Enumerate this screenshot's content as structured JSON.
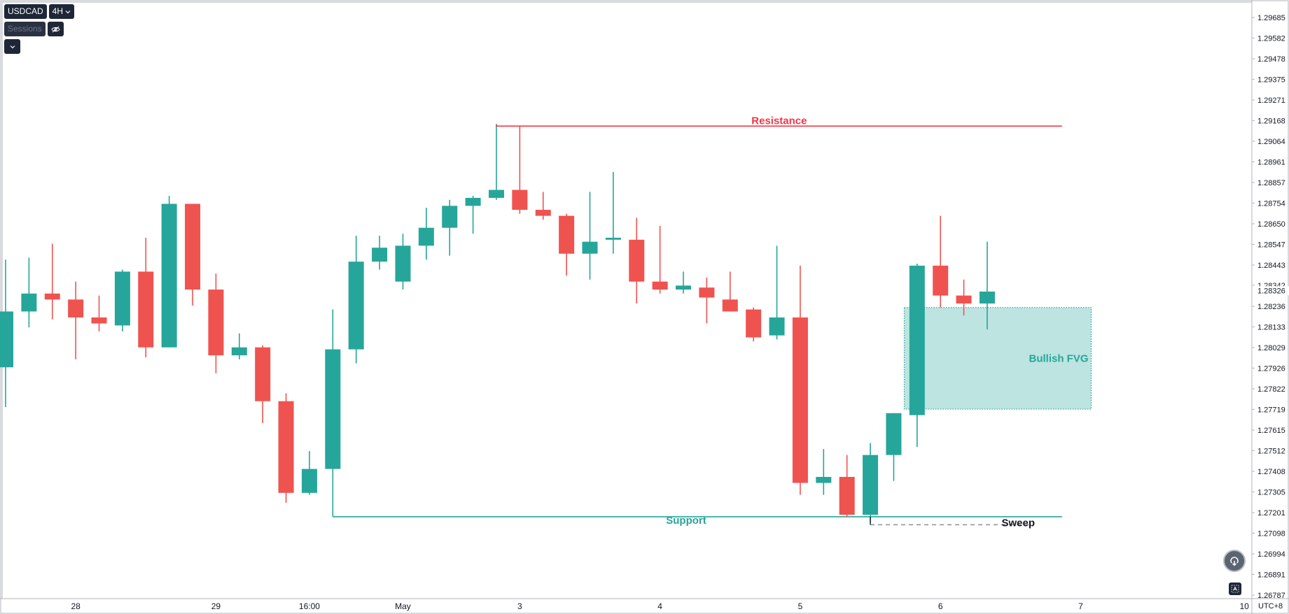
{
  "toolbar": {
    "symbol": "USDCAD",
    "interval": "4H",
    "sessions_label": "Sessions",
    "hide_icon": "eye-off-icon",
    "collapse_icon": "chevron-down-icon"
  },
  "timezone": "UTC+8",
  "chart_data": {
    "type": "candlestick",
    "title": "",
    "y_range": [
      1.2675,
      1.2975
    ],
    "y_ticks": [
      "1.29685",
      "1.29582",
      "1.29478",
      "1.29375",
      "1.29271",
      "1.29168",
      "1.29064",
      "1.28961",
      "1.28857",
      "1.28754",
      "1.28650",
      "1.28547",
      "1.28443",
      "1.28342",
      "1.28236",
      "1.28133",
      "1.28029",
      "1.27926",
      "1.27822",
      "1.27719",
      "1.27615",
      "1.27512",
      "1.27408",
      "1.27305",
      "1.27201",
      "1.27098",
      "1.26994",
      "1.26891",
      "1.26787"
    ],
    "current_price": "1.28326",
    "x_labels": [
      {
        "label": "28",
        "index": 3
      },
      {
        "label": "29",
        "index": 9
      },
      {
        "label": "16:00",
        "index": 13
      },
      {
        "label": "May",
        "index": 17
      },
      {
        "label": "3",
        "index": 22
      },
      {
        "label": "4",
        "index": 28
      },
      {
        "label": "5",
        "index": 34
      },
      {
        "label": "6",
        "index": 40
      },
      {
        "label": "7",
        "index": 46
      },
      {
        "label": "10",
        "index": 53
      }
    ],
    "candles": [
      {
        "o": 1.2793,
        "h": 1.2847,
        "l": 1.2773,
        "c": 1.2821
      },
      {
        "o": 1.2821,
        "h": 1.2848,
        "l": 1.2813,
        "c": 1.283
      },
      {
        "o": 1.283,
        "h": 1.2855,
        "l": 1.2817,
        "c": 1.2827
      },
      {
        "o": 1.2827,
        "h": 1.2836,
        "l": 1.2797,
        "c": 1.2818
      },
      {
        "o": 1.2818,
        "h": 1.2829,
        "l": 1.2811,
        "c": 1.2815
      },
      {
        "o": 1.2814,
        "h": 1.2842,
        "l": 1.2811,
        "c": 1.2841
      },
      {
        "o": 1.2841,
        "h": 1.2858,
        "l": 1.2798,
        "c": 1.2803
      },
      {
        "o": 1.2803,
        "h": 1.2879,
        "l": 1.2803,
        "c": 1.2875
      },
      {
        "o": 1.2875,
        "h": 1.2875,
        "l": 1.2824,
        "c": 1.2832
      },
      {
        "o": 1.2832,
        "h": 1.284,
        "l": 1.279,
        "c": 1.2799
      },
      {
        "o": 1.2799,
        "h": 1.281,
        "l": 1.2797,
        "c": 1.2803
      },
      {
        "o": 1.2803,
        "h": 1.2804,
        "l": 1.2765,
        "c": 1.2776
      },
      {
        "o": 1.2776,
        "h": 1.278,
        "l": 1.2725,
        "c": 1.273
      },
      {
        "o": 1.273,
        "h": 1.2751,
        "l": 1.2729,
        "c": 1.2742
      },
      {
        "o": 1.2742,
        "h": 1.2822,
        "l": 1.2725,
        "c": 1.2802
      },
      {
        "o": 1.2802,
        "h": 1.2859,
        "l": 1.2795,
        "c": 1.2846
      },
      {
        "o": 1.2846,
        "h": 1.2859,
        "l": 1.2842,
        "c": 1.2853
      },
      {
        "o": 1.2836,
        "h": 1.286,
        "l": 1.2832,
        "c": 1.2854
      },
      {
        "o": 1.2854,
        "h": 1.2873,
        "l": 1.2847,
        "c": 1.2863
      },
      {
        "o": 1.2863,
        "h": 1.2877,
        "l": 1.2849,
        "c": 1.2874
      },
      {
        "o": 1.2874,
        "h": 1.2879,
        "l": 1.286,
        "c": 1.2878
      },
      {
        "o": 1.2878,
        "h": 1.2915,
        "l": 1.2877,
        "c": 1.2882
      },
      {
        "o": 1.2882,
        "h": 1.2914,
        "l": 1.287,
        "c": 1.2872
      },
      {
        "o": 1.2872,
        "h": 1.2881,
        "l": 1.2867,
        "c": 1.2869
      },
      {
        "o": 1.2869,
        "h": 1.287,
        "l": 1.2839,
        "c": 1.285
      },
      {
        "o": 1.285,
        "h": 1.2881,
        "l": 1.2837,
        "c": 1.2856
      },
      {
        "o": 1.2857,
        "h": 1.2891,
        "l": 1.285,
        "c": 1.2858
      },
      {
        "o": 1.2857,
        "h": 1.2868,
        "l": 1.2825,
        "c": 1.2836
      },
      {
        "o": 1.2836,
        "h": 1.2864,
        "l": 1.283,
        "c": 1.2832
      },
      {
        "o": 1.2832,
        "h": 1.2841,
        "l": 1.283,
        "c": 1.2834
      },
      {
        "o": 1.2833,
        "h": 1.2838,
        "l": 1.2815,
        "c": 1.2828
      },
      {
        "o": 1.2827,
        "h": 1.2841,
        "l": 1.2821,
        "c": 1.2821
      },
      {
        "o": 1.2822,
        "h": 1.2823,
        "l": 1.2806,
        "c": 1.2808
      },
      {
        "o": 1.2809,
        "h": 1.2854,
        "l": 1.2807,
        "c": 1.2818
      },
      {
        "o": 1.2818,
        "h": 1.2844,
        "l": 1.2729,
        "c": 1.2735
      },
      {
        "o": 1.2735,
        "h": 1.2752,
        "l": 1.2729,
        "c": 1.2738
      },
      {
        "o": 1.2738,
        "h": 1.2749,
        "l": 1.2718,
        "c": 1.2719
      },
      {
        "o": 1.2719,
        "h": 1.2755,
        "l": 1.2715,
        "c": 1.2749
      },
      {
        "o": 1.2749,
        "h": 1.277,
        "l": 1.2736,
        "c": 1.277
      },
      {
        "o": 1.2769,
        "h": 1.2845,
        "l": 1.2753,
        "c": 1.2844
      },
      {
        "o": 1.2844,
        "h": 1.2869,
        "l": 1.2823,
        "c": 1.2829
      },
      {
        "o": 1.2829,
        "h": 1.2837,
        "l": 1.2819,
        "c": 1.2825
      },
      {
        "o": 1.2825,
        "h": 1.2856,
        "l": 1.2812,
        "c": 1.2831
      }
    ],
    "annotations": [
      {
        "label": "Resistance",
        "type": "hline",
        "price": 1.2914,
        "from_index": 21,
        "to_index": 45.2,
        "color": "#f23645"
      },
      {
        "label": "Support",
        "type": "hline",
        "price": 1.2718,
        "from_index": 14,
        "to_index": 45.2,
        "color": "#26a69a"
      },
      {
        "label": "Sweep",
        "type": "dashed",
        "price": 1.2714,
        "from_index": 37,
        "to_index": 43.8,
        "color": "#131722"
      },
      {
        "label": "Bullish FVG",
        "type": "zone",
        "price_top": 1.2823,
        "price_bottom": 1.2772,
        "from_index": 38.45,
        "to_index": 46.45,
        "color": "#26a69a"
      }
    ],
    "colors": {
      "up": "#26a69a",
      "down": "#ef5350"
    },
    "grid": false,
    "legend": "none"
  }
}
